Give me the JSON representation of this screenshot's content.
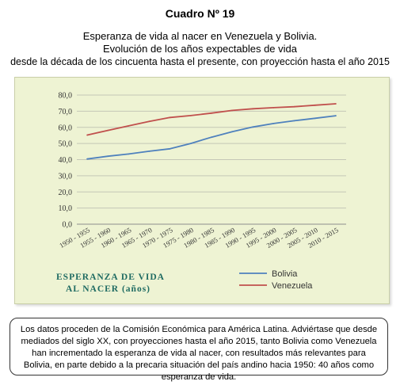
{
  "header": {
    "cuadro": "Cuadro Nº 19",
    "title_line1": "Esperanza de vida al nacer en Venezuela y Bolivia.",
    "title_line2": "Evolución de los años expectables de vida",
    "title_line3": "desde la década de los cincuenta hasta el presente, con proyección hasta el año 2015"
  },
  "chart_data": {
    "type": "line",
    "categories": [
      "1950 - 1955",
      "1955 - 1960",
      "1960 - 1965",
      "1965 - 1970",
      "1970 - 1975",
      "1975 - 1980",
      "1980 - 1985",
      "1985 - 1990",
      "1990 - 1995",
      "1995 - 2000",
      "2000 - 2005",
      "2005 - 2010",
      "2010 - 2015"
    ],
    "yticks": [
      "0,0",
      "10,0",
      "20,0",
      "30,0",
      "40,0",
      "50,0",
      "60,0",
      "70,0",
      "80,0"
    ],
    "ylim": [
      0,
      80
    ],
    "grid": true,
    "series": [
      {
        "name": "Bolivia",
        "color": "#4f81bd",
        "values": [
          40.4,
          42.1,
          43.5,
          45.2,
          46.7,
          50.0,
          53.9,
          57.3,
          60.2,
          62.4,
          64.1,
          65.6,
          67.2
        ]
      },
      {
        "name": "Venezuela",
        "color": "#c0504d",
        "values": [
          55.2,
          58.1,
          60.9,
          63.7,
          66.1,
          67.3,
          68.8,
          70.5,
          71.5,
          72.2,
          72.8,
          73.7,
          74.6
        ]
      }
    ],
    "legend_title_line1": "ESPERANZA DE VIDA",
    "legend_title_line2": "AL NACER (años)",
    "legend_placement": "bottom"
  },
  "note": {
    "text": "Los datos proceden de la Comisión Económica para América Latina. Adviértase que desde mediados del siglo XX, con proyecciones hasta el año 2015, tanto Bolivia como Venezuela han incrementado la esperanza de vida al nacer, con resultados más relevantes para Bolivia, en parte debido a la precaria situación del país andino hacia 1950: 40 años como esperanza de vida."
  }
}
